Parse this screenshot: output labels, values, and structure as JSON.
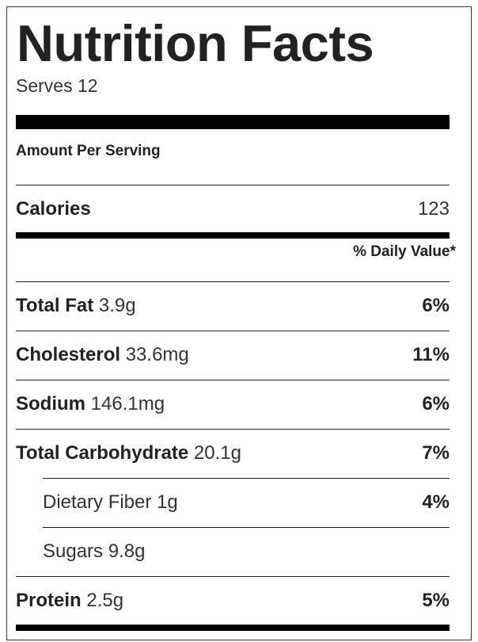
{
  "label": {
    "title": "Nutrition Facts",
    "serves": "Serves 12",
    "amount_per_serving": "Amount Per Serving",
    "calories": {
      "label": "Calories",
      "value": "123"
    },
    "daily_value_header": "% Daily Value*",
    "nutrients": [
      {
        "name": "Total Fat",
        "amount": "3.9g",
        "dv": "6%"
      },
      {
        "name": "Cholesterol",
        "amount": "33.6mg",
        "dv": "11%"
      },
      {
        "name": "Sodium",
        "amount": "146.1mg",
        "dv": "6%"
      },
      {
        "name": "Total Carbohydrate",
        "amount": "20.1g",
        "dv": "7%"
      },
      {
        "name": "Dietary Fiber",
        "amount": "1g",
        "dv": "4%"
      },
      {
        "name": "Sugars",
        "amount": "9.8g",
        "dv": ""
      },
      {
        "name": "Protein",
        "amount": "2.5g",
        "dv": "5%"
      }
    ]
  }
}
